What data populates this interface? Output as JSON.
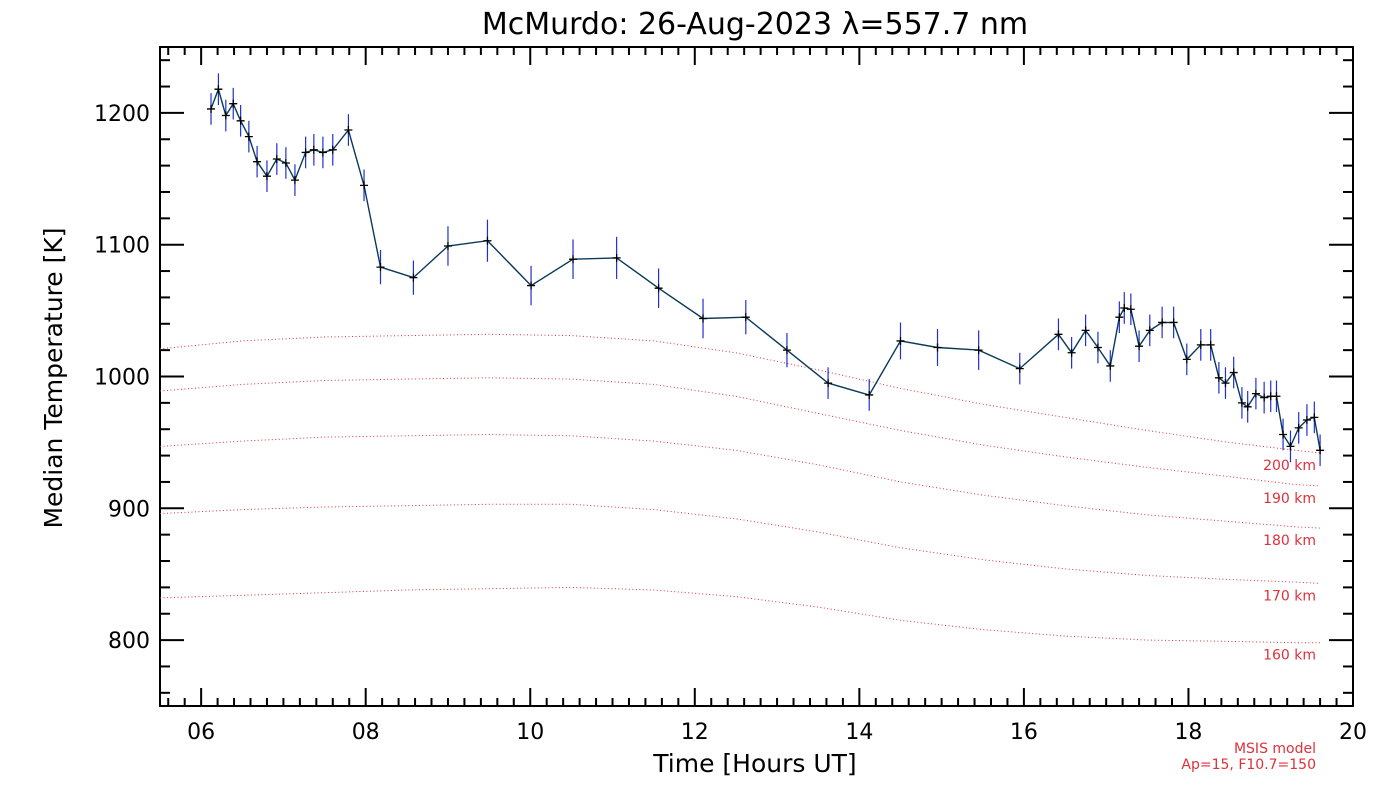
{
  "chart_data": {
    "type": "line",
    "title": "McMurdo: 26-Aug-2023 λ=557.7 nm",
    "xlabel": "Time [Hours UT]",
    "ylabel": "Median Temperature [K]",
    "xlim": [
      5.5,
      20.0
    ],
    "ylim": [
      750,
      1250
    ],
    "x_ticks": [
      6,
      8,
      10,
      12,
      14,
      16,
      18,
      20
    ],
    "x_tick_labels": [
      "06",
      "08",
      "10",
      "12",
      "14",
      "16",
      "18",
      "20"
    ],
    "y_ticks": [
      800,
      900,
      1000,
      1100,
      1200
    ],
    "y_tick_labels": [
      "800",
      "900",
      "1000",
      "1100",
      "1200"
    ],
    "grid": false,
    "series": [
      {
        "color": "#0a3a5a",
        "error_color": "#2030d0",
        "x": [
          6.12,
          6.21,
          6.3,
          6.39,
          6.48,
          6.58,
          6.68,
          6.8,
          6.92,
          7.03,
          7.14,
          7.27,
          7.37,
          7.48,
          7.6,
          7.79,
          7.98,
          8.18,
          8.58,
          9.0,
          9.48,
          10.01,
          10.52,
          11.05,
          11.56,
          12.1,
          12.62,
          13.12,
          13.62,
          14.12,
          14.5,
          14.95,
          15.45,
          15.95,
          16.42,
          16.58,
          16.75,
          16.9,
          17.05,
          17.16,
          17.22,
          17.3,
          17.4,
          17.53,
          17.68,
          17.82,
          17.98,
          18.15,
          18.27,
          18.37,
          18.45,
          18.55,
          18.65,
          18.72,
          18.82,
          18.92,
          19.0,
          19.07,
          19.15,
          19.24,
          19.34,
          19.44,
          19.53,
          19.6
        ],
        "y": [
          1203,
          1218,
          1198,
          1207,
          1194,
          1182,
          1163,
          1152,
          1165,
          1162,
          1149,
          1170,
          1172,
          1170,
          1172,
          1187,
          1145,
          1083,
          1075,
          1099,
          1103,
          1069,
          1089,
          1090,
          1067,
          1044,
          1045,
          1020,
          995,
          986,
          1027,
          1022,
          1020,
          1006,
          1032,
          1018,
          1035,
          1022,
          1008,
          1045,
          1052,
          1051,
          1023,
          1035,
          1041,
          1041,
          1013,
          1024,
          1024,
          999,
          995,
          1003,
          980,
          977,
          987,
          984,
          985,
          985,
          956,
          947,
          961,
          967,
          969,
          944
        ],
        "err": [
          12,
          12,
          12,
          12,
          12,
          12,
          12,
          12,
          12,
          12,
          12,
          12,
          12,
          12,
          12,
          12,
          12,
          13,
          13,
          15,
          16,
          15,
          15,
          16,
          15,
          15,
          13,
          13,
          12,
          12,
          14,
          14,
          15,
          12,
          12,
          12,
          12,
          12,
          12,
          12,
          12,
          12,
          12,
          12,
          12,
          12,
          12,
          12,
          12,
          12,
          12,
          12,
          12,
          12,
          12,
          12,
          12,
          12,
          12,
          12,
          12,
          12,
          12,
          12
        ]
      }
    ],
    "model_curves": {
      "color": "#e0303a",
      "x": [
        5.5,
        6.5,
        7.5,
        8.5,
        9.5,
        10.5,
        11.5,
        12.5,
        13.5,
        14.5,
        15.5,
        16.5,
        17.5,
        18.5,
        19.3,
        19.6
      ],
      "curves": [
        {
          "label": "200 km",
          "y": [
            1021,
            1027,
            1030,
            1031,
            1032,
            1031,
            1027,
            1018,
            1005,
            991,
            979,
            969,
            959,
            950,
            944,
            942
          ]
        },
        {
          "label": "190 km",
          "y": [
            989,
            994,
            997,
            998,
            999,
            998,
            994,
            985,
            972,
            959,
            948,
            939,
            931,
            924,
            918,
            917
          ]
        },
        {
          "label": "180 km",
          "y": [
            947,
            951,
            954,
            955,
            956,
            955,
            951,
            944,
            933,
            920,
            910,
            902,
            895,
            890,
            886,
            885
          ]
        },
        {
          "label": "170 km",
          "y": [
            896,
            899,
            901,
            902,
            903,
            903,
            899,
            892,
            882,
            870,
            861,
            854,
            849,
            846,
            844,
            843
          ]
        },
        {
          "label": "160 km",
          "y": [
            832,
            834,
            836,
            838,
            839,
            840,
            838,
            833,
            825,
            815,
            808,
            803,
            800,
            799,
            798,
            798
          ]
        }
      ]
    },
    "model_note": [
      "MSIS model",
      "Ap=15, F10.7=150"
    ]
  }
}
